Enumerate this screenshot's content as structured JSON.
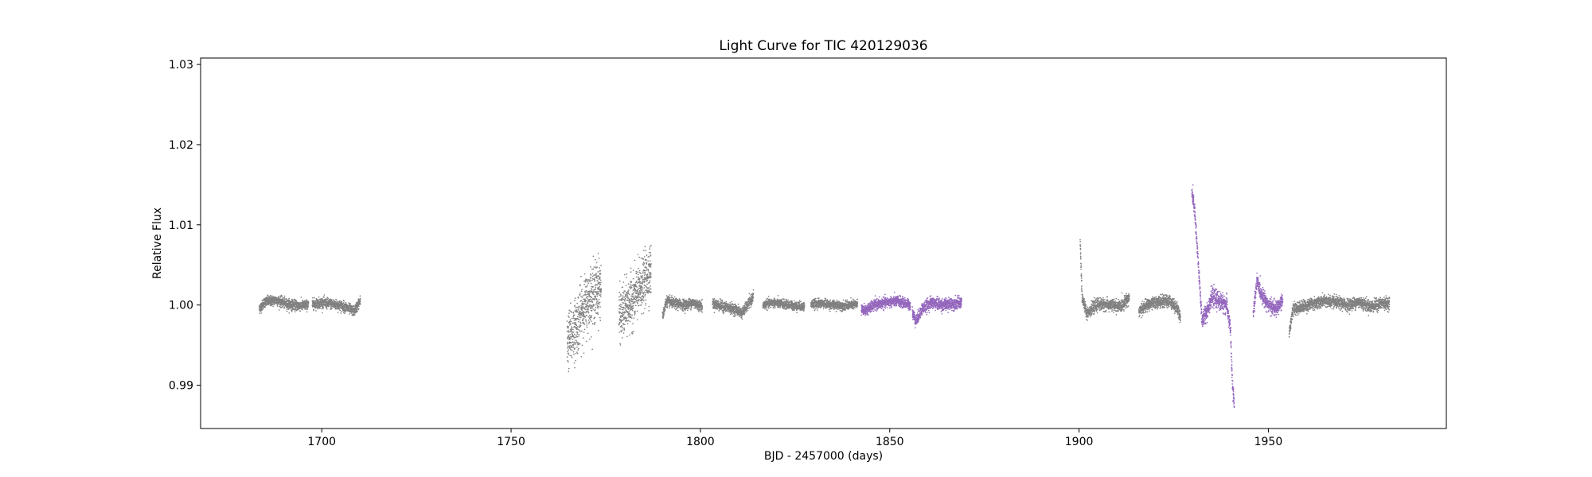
{
  "chart_data": {
    "type": "scatter",
    "title": "Light Curve for TIC 420129036",
    "xlabel": "BJD - 2457000 (days)",
    "ylabel": "Relative Flux",
    "xlim": [
      1668,
      1997
    ],
    "ylim": [
      0.9846,
      1.0308
    ],
    "xticks": [
      1700,
      1750,
      1800,
      1850,
      1900,
      1950
    ],
    "yticks": [
      0.99,
      1.0,
      1.01,
      1.02,
      1.03
    ],
    "ytick_labels": [
      "0.99",
      "1.00",
      "1.01",
      "1.02",
      "1.03"
    ],
    "grid": false,
    "series": [
      {
        "color": "#808080",
        "segments": [
          {
            "x0": 1683.5,
            "x1": 1696.5,
            "shape": [
              [
                1683.5,
                0.9995
              ],
              [
                1685,
                1.0004
              ],
              [
                1688,
                1.0006
              ],
              [
                1691,
                1.0001
              ],
              [
                1694,
                0.9999
              ],
              [
                1696.5,
                1.0
              ]
            ],
            "scatter": 0.0007
          },
          {
            "x0": 1697.5,
            "x1": 1710.2,
            "shape": [
              [
                1697.5,
                1.0001
              ],
              [
                1700,
                1.0003
              ],
              [
                1703,
                1.0001
              ],
              [
                1706,
                0.9998
              ],
              [
                1708.5,
                0.9992
              ],
              [
                1710.2,
                1.0005
              ]
            ],
            "scatter": 0.0007
          },
          {
            "x0": 1764.8,
            "x1": 1773.8,
            "shape": [
              [
                1764.8,
                0.9955
              ],
              [
                1767,
                0.997
              ],
              [
                1769,
                0.9995
              ],
              [
                1771,
                1.001
              ],
              [
                1773.8,
                1.0025
              ]
            ],
            "scatter": 0.004
          },
          {
            "x0": 1778.5,
            "x1": 1787.0,
            "shape": [
              [
                1778.5,
                0.9985
              ],
              [
                1780,
                0.9995
              ],
              [
                1782,
                1.0005
              ],
              [
                1784,
                1.002
              ],
              [
                1787.0,
                1.0045
              ]
            ],
            "scatter": 0.0035
          },
          {
            "x0": 1790.0,
            "x1": 1800.5,
            "shape": [
              [
                1790,
                0.9985
              ],
              [
                1791,
                1.0005
              ],
              [
                1793,
                1.0002
              ],
              [
                1796,
                1.0
              ],
              [
                1798,
                1.0003
              ],
              [
                1800.5,
                0.9998
              ]
            ],
            "scatter": 0.0007
          },
          {
            "x0": 1803.2,
            "x1": 1814.0,
            "shape": [
              [
                1803.2,
                1.0002
              ],
              [
                1806,
                0.9998
              ],
              [
                1809,
                0.9995
              ],
              [
                1811,
                0.999
              ],
              [
                1814.0,
                1.001
              ]
            ],
            "scatter": 0.0007
          },
          {
            "x0": 1816.5,
            "x1": 1827.5,
            "shape": [
              [
                1816.5,
                1.0
              ],
              [
                1819,
                1.0003
              ],
              [
                1822,
                1.0001
              ],
              [
                1825,
                0.9999
              ],
              [
                1827.5,
                0.9998
              ]
            ],
            "scatter": 0.0006
          },
          {
            "x0": 1829.2,
            "x1": 1841.5,
            "shape": [
              [
                1829.2,
                1.0001
              ],
              [
                1832,
                1.0002
              ],
              [
                1835,
                1.0
              ],
              [
                1838,
                0.9999
              ],
              [
                1841.5,
                1.0001
              ]
            ],
            "scatter": 0.0006
          },
          {
            "x0": 1900.3,
            "x1": 1913.3,
            "shape": [
              [
                1900.3,
                1.008
              ],
              [
                1900.8,
                1.001
              ],
              [
                1902,
                0.999
              ],
              [
                1905,
                1.0001
              ],
              [
                1908,
                1.0
              ],
              [
                1911,
                0.9998
              ],
              [
                1913.3,
                1.001
              ]
            ],
            "scatter": 0.0008
          },
          {
            "x0": 1915.8,
            "x1": 1926.8,
            "shape": [
              [
                1915.8,
                0.9992
              ],
              [
                1918,
                1.0
              ],
              [
                1921,
                1.0004
              ],
              [
                1924,
                1.0005
              ],
              [
                1926,
                0.9995
              ],
              [
                1926.8,
                0.9985
              ]
            ],
            "scatter": 0.0008
          },
          {
            "x0": 1955.5,
            "x1": 1982.0,
            "shape": [
              [
                1955.5,
                0.9965
              ],
              [
                1956.5,
                0.9995
              ],
              [
                1959,
                0.9998
              ],
              [
                1962,
                1.0002
              ],
              [
                1965,
                1.0005
              ],
              [
                1968,
                1.0003
              ],
              [
                1971,
                1.0
              ],
              [
                1974,
                1.0004
              ],
              [
                1977,
                0.9998
              ],
              [
                1980,
                1.0002
              ],
              [
                1982,
                1.0002
              ]
            ],
            "scatter": 0.0008
          }
        ]
      },
      {
        "color": "#9467bd",
        "segments": [
          {
            "x0": 1842.5,
            "x1": 1855.5,
            "shape": [
              [
                1842.5,
                0.9995
              ],
              [
                1843.5,
                0.9993
              ],
              [
                1846,
                1.0
              ],
              [
                1849,
                1.0003
              ],
              [
                1852,
                1.0005
              ],
              [
                1855.5,
                1.0
              ]
            ],
            "scatter": 0.0007
          },
          {
            "x0": 1856.0,
            "x1": 1869.0,
            "shape": [
              [
                1856.0,
                0.999
              ],
              [
                1857,
                0.998
              ],
              [
                1858.5,
                0.9995
              ],
              [
                1861,
                1.0003
              ],
              [
                1864,
                1.0
              ],
              [
                1867,
                1.0002
              ],
              [
                1869,
                1.0003
              ]
            ],
            "scatter": 0.0008
          },
          {
            "x0": 1929.8,
            "x1": 1941.0,
            "shape": [
              [
                1929.8,
                1.014
              ],
              [
                1930.5,
                1.012
              ],
              [
                1931.5,
                1.005
              ],
              [
                1932.5,
                0.998
              ],
              [
                1934,
                0.9995
              ],
              [
                1935,
                1.001
              ],
              [
                1937,
                1.0005
              ],
              [
                1939,
                1.0
              ],
              [
                1940,
                0.997
              ],
              [
                1940.5,
                0.99
              ],
              [
                1941.0,
                0.9875
              ]
            ],
            "scatter": 0.0012
          },
          {
            "x0": 1946.0,
            "x1": 1953.8,
            "shape": [
              [
                1946.0,
                0.999
              ],
              [
                1947,
                1.003
              ],
              [
                1948,
                1.0015
              ],
              [
                1950,
                1.0
              ],
              [
                1952,
                0.9995
              ],
              [
                1953.8,
                1.0005
              ]
            ],
            "scatter": 0.001
          }
        ]
      }
    ]
  }
}
